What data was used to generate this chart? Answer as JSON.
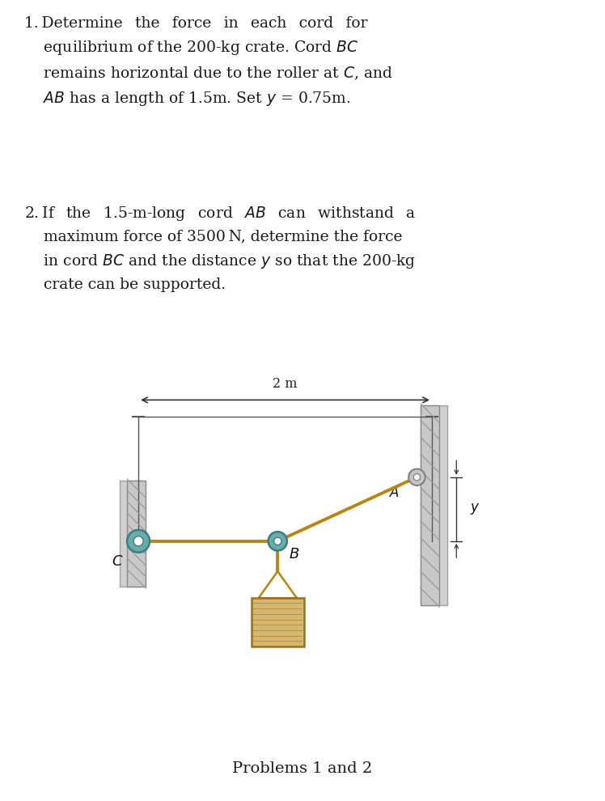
{
  "background_color": "#ffffff",
  "text_color": "#1a1a1a",
  "caption": "Problems 1 and 2",
  "cord_color": "#b8860b",
  "wall_gray": "#b0b0b0",
  "wall_dark": "#888888",
  "wall_shadow": "#909090",
  "roller_teal": "#6aacae",
  "roller_ring": "#3a7f82",
  "roller_B_fill": "#4a9090",
  "node_fill_A": "#b0b0b0",
  "node_ring_A": "#808080",
  "crate_fill": "#d4b870",
  "crate_line": "#9a7020",
  "crate_line2": "#b89040",
  "dim_color": "#333333",
  "label_color": "#111111",
  "p1_text": "1. Determine  the  force  in  each  cord  for\n    equilibrium of the 200-kg crate. Cord $BC$\n    remains horizontal due to the roller at $C$, and\n    $AB$ has a length of 1.5m. Set $y$ = 0.75m.",
  "p2_text": "2. If  the  1.5-m-long  cord  $AB$  can  withstand  a\n    maximum force of 3500 N, determine the force\n    in cord $BC$ and the distance $y$ so that the 200-kg\n    crate can be supported."
}
